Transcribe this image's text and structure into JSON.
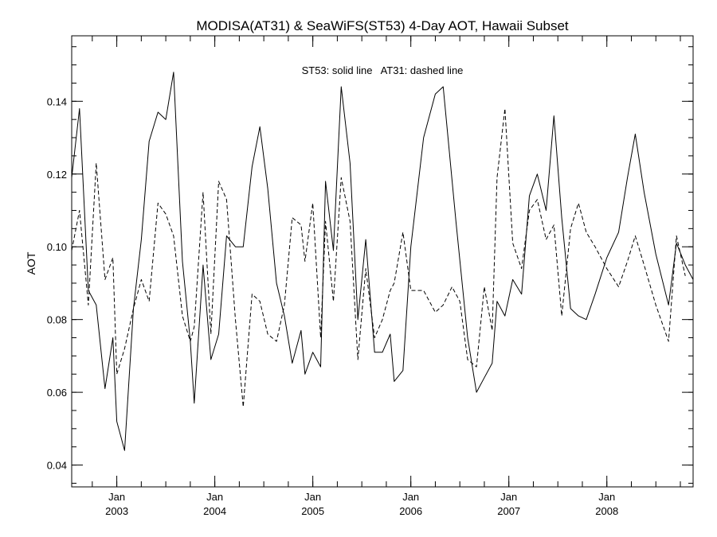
{
  "chart_data": {
    "type": "line",
    "title": "MODISA(AT31) & SeaWiFS(ST53) 4-Day AOT, Hawaii Subset",
    "annotation": "ST53: solid line   AT31: dashed line",
    "xlabel": "",
    "ylabel": "AOT",
    "xlim": [
      2002.54,
      2008.88
    ],
    "ylim": [
      0.034,
      0.158
    ],
    "y_ticks": [
      0.04,
      0.06,
      0.08,
      0.1,
      0.12,
      0.14
    ],
    "y_tick_labels": [
      "0.04",
      "0.06",
      "0.08",
      "0.10",
      "0.12",
      "0.14"
    ],
    "x_ticks": [
      {
        "x": 2003.0,
        "month": "Jan",
        "year": "2003"
      },
      {
        "x": 2004.0,
        "month": "Jan",
        "year": "2004"
      },
      {
        "x": 2005.0,
        "month": "Jan",
        "year": "2005"
      },
      {
        "x": 2006.0,
        "month": "Jan",
        "year": "2006"
      },
      {
        "x": 2007.0,
        "month": "Jan",
        "year": "2007"
      },
      {
        "x": 2008.0,
        "month": "Jan",
        "year": "2008"
      }
    ],
    "grid": false,
    "series": [
      {
        "name": "ST53",
        "style": "solid",
        "color": "#000000",
        "points": [
          [
            2002.54,
            0.119
          ],
          [
            2002.62,
            0.138
          ],
          [
            2002.71,
            0.088
          ],
          [
            2002.79,
            0.084
          ],
          [
            2002.88,
            0.061
          ],
          [
            2002.96,
            0.075
          ],
          [
            2003.0,
            0.052
          ],
          [
            2003.08,
            0.044
          ],
          [
            2003.17,
            0.083
          ],
          [
            2003.25,
            0.102
          ],
          [
            2003.33,
            0.129
          ],
          [
            2003.42,
            0.137
          ],
          [
            2003.5,
            0.135
          ],
          [
            2003.58,
            0.148
          ],
          [
            2003.67,
            0.096
          ],
          [
            2003.75,
            0.074
          ],
          [
            2003.79,
            0.057
          ],
          [
            2003.88,
            0.095
          ],
          [
            2003.96,
            0.069
          ],
          [
            2004.04,
            0.076
          ],
          [
            2004.12,
            0.103
          ],
          [
            2004.21,
            0.1
          ],
          [
            2004.29,
            0.1
          ],
          [
            2004.38,
            0.122
          ],
          [
            2004.46,
            0.133
          ],
          [
            2004.54,
            0.116
          ],
          [
            2004.63,
            0.09
          ],
          [
            2004.71,
            0.081
          ],
          [
            2004.79,
            0.068
          ],
          [
            2004.88,
            0.077
          ],
          [
            2004.92,
            0.065
          ],
          [
            2005.0,
            0.071
          ],
          [
            2005.08,
            0.067
          ],
          [
            2005.13,
            0.118
          ],
          [
            2005.21,
            0.099
          ],
          [
            2005.29,
            0.144
          ],
          [
            2005.38,
            0.123
          ],
          [
            2005.46,
            0.08
          ],
          [
            2005.54,
            0.102
          ],
          [
            2005.63,
            0.071
          ],
          [
            2005.71,
            0.071
          ],
          [
            2005.79,
            0.076
          ],
          [
            2005.83,
            0.063
          ],
          [
            2005.92,
            0.066
          ],
          [
            2006.0,
            0.1
          ],
          [
            2006.13,
            0.13
          ],
          [
            2006.25,
            0.142
          ],
          [
            2006.33,
            0.144
          ],
          [
            2006.46,
            0.107
          ],
          [
            2006.58,
            0.075
          ],
          [
            2006.67,
            0.06
          ],
          [
            2006.75,
            0.064
          ],
          [
            2006.83,
            0.068
          ],
          [
            2006.88,
            0.085
          ],
          [
            2006.96,
            0.081
          ],
          [
            2007.04,
            0.091
          ],
          [
            2007.13,
            0.087
          ],
          [
            2007.21,
            0.114
          ],
          [
            2007.29,
            0.12
          ],
          [
            2007.38,
            0.11
          ],
          [
            2007.46,
            0.136
          ],
          [
            2007.54,
            0.108
          ],
          [
            2007.63,
            0.083
          ],
          [
            2007.71,
            0.081
          ],
          [
            2007.79,
            0.08
          ],
          [
            2007.88,
            0.087
          ],
          [
            2008.0,
            0.097
          ],
          [
            2008.12,
            0.104
          ],
          [
            2008.21,
            0.119
          ],
          [
            2008.29,
            0.131
          ],
          [
            2008.38,
            0.115
          ],
          [
            2008.5,
            0.098
          ],
          [
            2008.63,
            0.084
          ],
          [
            2008.71,
            0.101
          ],
          [
            2008.8,
            0.095
          ],
          [
            2008.88,
            0.091
          ]
        ]
      },
      {
        "name": "AT31",
        "style": "dashed",
        "color": "#000000",
        "points": [
          [
            2002.54,
            0.099
          ],
          [
            2002.62,
            0.11
          ],
          [
            2002.71,
            0.084
          ],
          [
            2002.79,
            0.123
          ],
          [
            2002.88,
            0.091
          ],
          [
            2002.96,
            0.097
          ],
          [
            2003.0,
            0.065
          ],
          [
            2003.08,
            0.072
          ],
          [
            2003.17,
            0.083
          ],
          [
            2003.25,
            0.091
          ],
          [
            2003.33,
            0.085
          ],
          [
            2003.42,
            0.112
          ],
          [
            2003.5,
            0.109
          ],
          [
            2003.58,
            0.103
          ],
          [
            2003.67,
            0.081
          ],
          [
            2003.75,
            0.074
          ],
          [
            2003.79,
            0.078
          ],
          [
            2003.88,
            0.115
          ],
          [
            2003.96,
            0.076
          ],
          [
            2004.04,
            0.118
          ],
          [
            2004.12,
            0.113
          ],
          [
            2004.21,
            0.08
          ],
          [
            2004.29,
            0.056
          ],
          [
            2004.38,
            0.087
          ],
          [
            2004.46,
            0.085
          ],
          [
            2004.54,
            0.076
          ],
          [
            2004.63,
            0.074
          ],
          [
            2004.71,
            0.084
          ],
          [
            2004.79,
            0.108
          ],
          [
            2004.88,
            0.106
          ],
          [
            2004.92,
            0.096
          ],
          [
            2005.0,
            0.112
          ],
          [
            2005.08,
            0.075
          ],
          [
            2005.13,
            0.107
          ],
          [
            2005.21,
            0.085
          ],
          [
            2005.29,
            0.119
          ],
          [
            2005.38,
            0.107
          ],
          [
            2005.46,
            0.069
          ],
          [
            2005.54,
            0.094
          ],
          [
            2005.63,
            0.075
          ],
          [
            2005.71,
            0.08
          ],
          [
            2005.79,
            0.088
          ],
          [
            2005.83,
            0.09
          ],
          [
            2005.92,
            0.104
          ],
          [
            2006.0,
            0.088
          ],
          [
            2006.13,
            0.088
          ],
          [
            2006.25,
            0.082
          ],
          [
            2006.33,
            0.084
          ],
          [
            2006.42,
            0.089
          ],
          [
            2006.5,
            0.085
          ],
          [
            2006.58,
            0.069
          ],
          [
            2006.67,
            0.067
          ],
          [
            2006.75,
            0.089
          ],
          [
            2006.83,
            0.077
          ],
          [
            2006.88,
            0.119
          ],
          [
            2006.96,
            0.138
          ],
          [
            2007.04,
            0.101
          ],
          [
            2007.13,
            0.094
          ],
          [
            2007.21,
            0.11
          ],
          [
            2007.29,
            0.113
          ],
          [
            2007.38,
            0.102
          ],
          [
            2007.46,
            0.106
          ],
          [
            2007.54,
            0.081
          ],
          [
            2007.63,
            0.105
          ],
          [
            2007.71,
            0.112
          ],
          [
            2007.79,
            0.104
          ],
          [
            2007.88,
            0.1
          ],
          [
            2008.0,
            0.094
          ],
          [
            2008.12,
            0.089
          ],
          [
            2008.21,
            0.096
          ],
          [
            2008.29,
            0.103
          ],
          [
            2008.38,
            0.095
          ],
          [
            2008.5,
            0.084
          ],
          [
            2008.63,
            0.074
          ],
          [
            2008.71,
            0.103
          ],
          [
            2008.8,
            0.092
          ]
        ]
      }
    ]
  }
}
